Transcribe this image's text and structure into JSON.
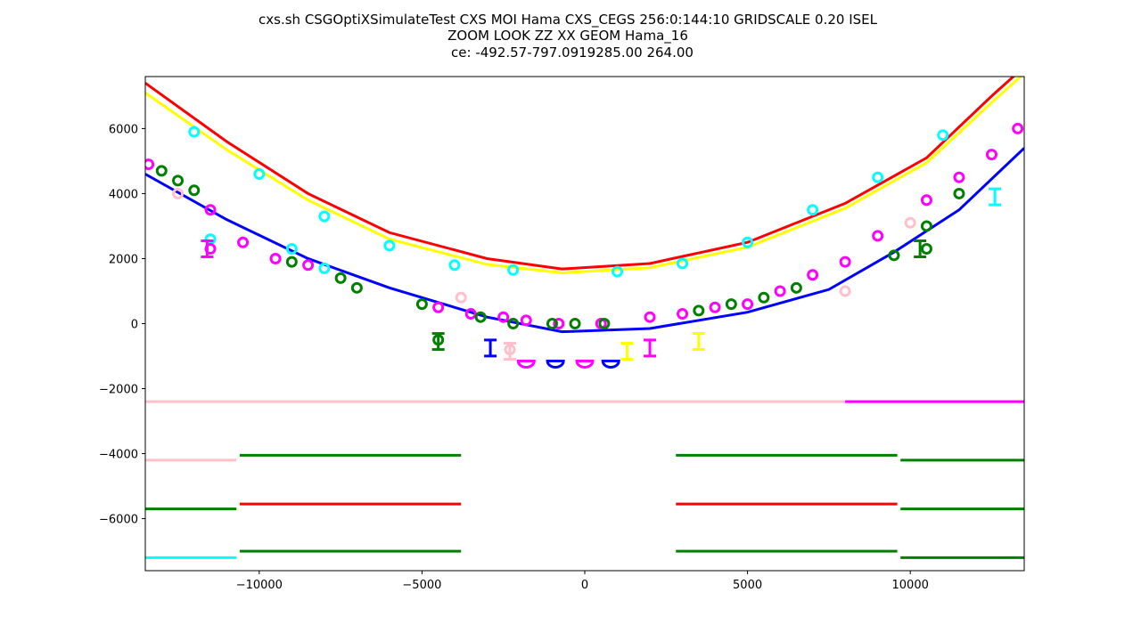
{
  "chart_data": {
    "type": "scatter",
    "title_lines": [
      "cxs.sh CSGOptiXSimulateTest CXS  MOI Hama CXS_CEGS 256:0:144:10 GRIDSCALE 0.20 ISEL",
      "ZOOM  LOOK  ZZ  XX  GEOM Hama_16",
      "ce: -492.57-797.0919285.00 264.00"
    ],
    "xlabel": "",
    "ylabel": "",
    "xlim": [
      -13500,
      13500
    ],
    "ylim": [
      -7600,
      7600
    ],
    "xticks": [
      -10000,
      -5000,
      0,
      5000,
      10000
    ],
    "xtick_labels": [
      "−10000",
      "−5000",
      "0",
      "5000",
      "10000"
    ],
    "yticks": [
      -6000,
      -4000,
      -2000,
      0,
      2000,
      4000,
      6000
    ],
    "ytick_labels": [
      "−6000",
      "−4000",
      "−2000",
      "0",
      "2000",
      "4000",
      "6000"
    ],
    "grid": false,
    "colors": {
      "red": "#ff0000",
      "yellow": "#ffff00",
      "blue": "#0000ff",
      "cyan": "#00ffff",
      "green": "#008000",
      "magenta": "#ff00ff",
      "pink": "#ffc0cb"
    },
    "series": [
      {
        "color": "red",
        "kind": "curve",
        "points": [
          [
            -13500,
            7400
          ],
          [
            -11000,
            5600
          ],
          [
            -8500,
            4000
          ],
          [
            -6000,
            2800
          ],
          [
            -3000,
            2000
          ],
          [
            -700,
            1680
          ],
          [
            2000,
            1850
          ],
          [
            5000,
            2500
          ],
          [
            8000,
            3700
          ],
          [
            10500,
            5100
          ],
          [
            12500,
            7000
          ],
          [
            13500,
            7900
          ]
        ]
      },
      {
        "color": "yellow",
        "kind": "curve",
        "points": [
          [
            -13500,
            7100
          ],
          [
            -11000,
            5350
          ],
          [
            -8500,
            3800
          ],
          [
            -6000,
            2600
          ],
          [
            -3000,
            1820
          ],
          [
            -700,
            1560
          ],
          [
            2000,
            1720
          ],
          [
            5000,
            2350
          ],
          [
            8000,
            3550
          ],
          [
            10500,
            4950
          ],
          [
            12500,
            6800
          ],
          [
            13500,
            7700
          ]
        ]
      },
      {
        "color": "blue",
        "kind": "curve",
        "points": [
          [
            -13500,
            4600
          ],
          [
            -11000,
            3200
          ],
          [
            -8500,
            2000
          ],
          [
            -6000,
            1100
          ],
          [
            -3000,
            200
          ],
          [
            -700,
            -250
          ],
          [
            2000,
            -150
          ],
          [
            5000,
            350
          ],
          [
            7500,
            1050
          ],
          [
            9500,
            2200
          ],
          [
            11500,
            3500
          ],
          [
            13500,
            5400
          ]
        ]
      },
      {
        "color": "cyan",
        "kind": "points",
        "points": [
          [
            -12000,
            5900
          ],
          [
            -10000,
            4600
          ],
          [
            -8000,
            3300
          ],
          [
            -6000,
            2400
          ],
          [
            -4000,
            1800
          ],
          [
            -2200,
            1650
          ],
          [
            1000,
            1600
          ],
          [
            3000,
            1850
          ],
          [
            5000,
            2500
          ],
          [
            7000,
            3500
          ],
          [
            9000,
            4500
          ],
          [
            11000,
            5800
          ],
          [
            -9000,
            2300
          ],
          [
            -8000,
            1700
          ],
          [
            -11500,
            2600
          ]
        ]
      },
      {
        "color": "magenta",
        "kind": "points",
        "points": [
          [
            -13400,
            4900
          ],
          [
            -11500,
            3500
          ],
          [
            -10500,
            2500
          ],
          [
            -9500,
            2000
          ],
          [
            -8500,
            1800
          ],
          [
            -4500,
            500
          ],
          [
            -3500,
            300
          ],
          [
            -2500,
            200
          ],
          [
            -1800,
            100
          ],
          [
            -800,
            0
          ],
          [
            500,
            0
          ],
          [
            2000,
            200
          ],
          [
            3000,
            300
          ],
          [
            4000,
            500
          ],
          [
            5000,
            600
          ],
          [
            6000,
            1000
          ],
          [
            7000,
            1500
          ],
          [
            8000,
            1900
          ],
          [
            9000,
            2700
          ],
          [
            10500,
            3800
          ],
          [
            11500,
            4500
          ],
          [
            12500,
            5200
          ],
          [
            13300,
            6000
          ],
          [
            -11500,
            2300
          ]
        ]
      },
      {
        "color": "green",
        "kind": "points",
        "points": [
          [
            -13000,
            4700
          ],
          [
            -12500,
            4400
          ],
          [
            -12000,
            4100
          ],
          [
            -9000,
            1900
          ],
          [
            -7500,
            1400
          ],
          [
            -7000,
            1100
          ],
          [
            -5000,
            600
          ],
          [
            -3200,
            200
          ],
          [
            -2200,
            0
          ],
          [
            -1000,
            0
          ],
          [
            -300,
            0
          ],
          [
            600,
            0
          ],
          [
            3500,
            400
          ],
          [
            4500,
            600
          ],
          [
            5500,
            800
          ],
          [
            6500,
            1100
          ],
          [
            9500,
            2100
          ],
          [
            10500,
            3000
          ],
          [
            11500,
            4000
          ],
          [
            -4500,
            -500
          ],
          [
            10500,
            2300
          ]
        ]
      },
      {
        "color": "pink",
        "kind": "points",
        "points": [
          [
            -2300,
            -800
          ],
          [
            8000,
            1000
          ],
          [
            -3800,
            800
          ],
          [
            -12500,
            4000
          ],
          [
            10000,
            3100
          ]
        ]
      }
    ],
    "inner_structures": [
      {
        "color": "magenta",
        "label": "I",
        "x": -11600,
        "y": 2300
      },
      {
        "color": "green",
        "label": "I",
        "x": -4500,
        "y": -550
      },
      {
        "color": "blue",
        "label": "I",
        "x": -2900,
        "y": -750
      },
      {
        "color": "pink",
        "label": "I",
        "x": -2300,
        "y": -850
      },
      {
        "color": "yellow",
        "label": "I",
        "x": 1300,
        "y": -850
      },
      {
        "color": "magenta",
        "label": "I",
        "x": 2000,
        "y": -750
      },
      {
        "color": "yellow",
        "label": "I",
        "x": 3500,
        "y": -550
      },
      {
        "color": "green",
        "label": "I",
        "x": 10300,
        "y": 2300
      },
      {
        "color": "cyan",
        "label": "I",
        "x": 12600,
        "y": 3900
      }
    ],
    "cups": [
      {
        "color": "magenta",
        "x": -1800,
        "y": -1150
      },
      {
        "color": "blue",
        "x": -900,
        "y": -1150
      },
      {
        "color": "magenta",
        "x": 0,
        "y": -1150
      },
      {
        "color": "blue",
        "x": 800,
        "y": -1150
      }
    ],
    "horizontal_lines": [
      {
        "color": "pink",
        "y": -2400,
        "x0": -13500,
        "x1": 13500
      },
      {
        "color": "magenta",
        "y": -2400,
        "x0": 8000,
        "x1": 13500
      },
      {
        "color": "pink",
        "y": -4200,
        "x0": -13500,
        "x1": -10700
      },
      {
        "color": "green",
        "y": -4050,
        "x0": -10600,
        "x1": -3800
      },
      {
        "color": "green",
        "y": -4050,
        "x0": 2800,
        "x1": 9600
      },
      {
        "color": "green",
        "y": -4200,
        "x0": 9700,
        "x1": 13500
      },
      {
        "color": "green",
        "y": -5700,
        "x0": -13500,
        "x1": -10700
      },
      {
        "color": "red",
        "y": -5550,
        "x0": -10600,
        "x1": -3800
      },
      {
        "color": "red",
        "y": -5550,
        "x0": 2800,
        "x1": 9600
      },
      {
        "color": "green",
        "y": -5700,
        "x0": 9700,
        "x1": 13500
      },
      {
        "color": "cyan",
        "y": -7200,
        "x0": -13500,
        "x1": -10700
      },
      {
        "color": "green",
        "y": -7000,
        "x0": -10600,
        "x1": -3800
      },
      {
        "color": "green",
        "y": -7000,
        "x0": 2800,
        "x1": 9600
      },
      {
        "color": "green",
        "y": -7200,
        "x0": 9700,
        "x1": 13500
      }
    ]
  }
}
